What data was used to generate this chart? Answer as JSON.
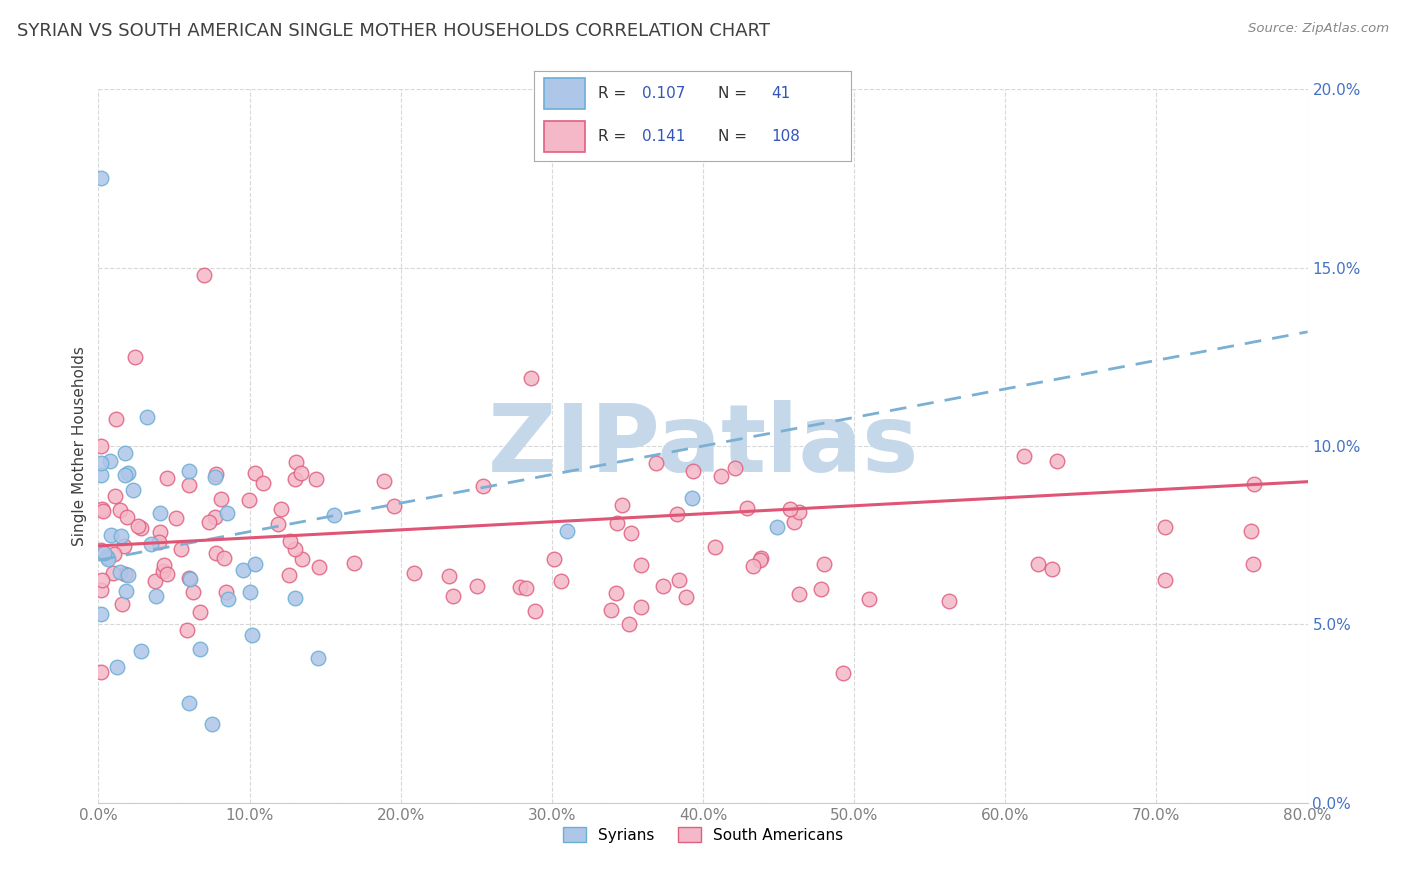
{
  "title": "SYRIAN VS SOUTH AMERICAN SINGLE MOTHER HOUSEHOLDS CORRELATION CHART",
  "source": "Source: ZipAtlas.com",
  "ylabel": "Single Mother Households",
  "watermark": "ZIPatlas",
  "syrians_label": "Syrians",
  "south_americans_label": "South Americans",
  "syrian_fill_color": "#aec6e8",
  "syrian_edge_color": "#6baed6",
  "sa_fill_color": "#f4b8c8",
  "sa_edge_color": "#e06080",
  "syrian_line_color": "#7ab0d4",
  "sa_line_color": "#e05575",
  "ytick_color": "#4472c4",
  "title_color": "#404040",
  "source_color": "#888888",
  "grid_color": "#d8d8d8",
  "watermark_color": "#c5d8ea",
  "legend_text_color": "#333333",
  "legend_r_color": "#3355bb",
  "xlim": [
    0.0,
    0.8
  ],
  "ylim": [
    0.0,
    0.2
  ],
  "xticks": [
    0.0,
    0.1,
    0.2,
    0.3,
    0.4,
    0.5,
    0.6,
    0.7,
    0.8
  ],
  "yticks": [
    0.0,
    0.05,
    0.1,
    0.15,
    0.2
  ],
  "syr_trend": [
    0.068,
    0.132
  ],
  "sa_trend": [
    0.072,
    0.09
  ]
}
